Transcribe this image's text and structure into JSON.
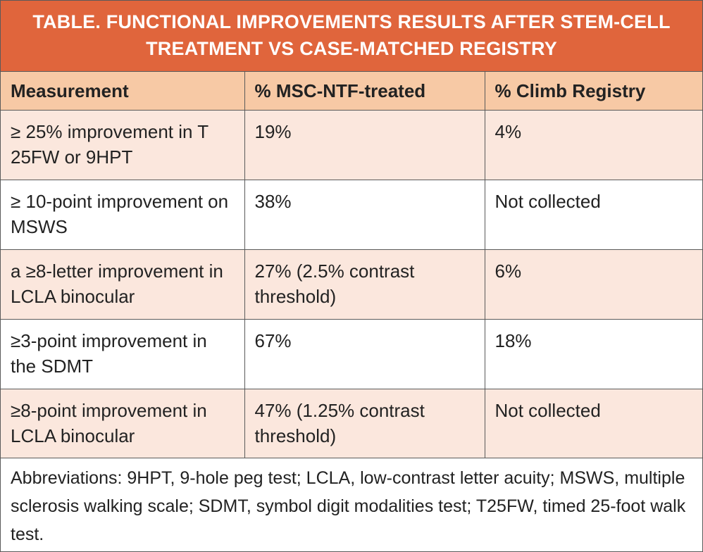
{
  "title": {
    "line1": "TABLE.  FUNCTIONAL IMPROVEMENTS RESULTS AFTER STEM-CELL",
    "line2": "TREATMENT VS CASE-MATCHED REGISTRY"
  },
  "columns": [
    "Measurement",
    "% MSC-NTF-treated",
    "% Climb Registry"
  ],
  "rows": [
    {
      "measurement": "≥ 25% improvement in T 25FW or 9HPT",
      "treated": "19%",
      "registry": "4%"
    },
    {
      "measurement": "≥ 10-point improvement on MSWS",
      "treated": "38%",
      "registry": "Not collected"
    },
    {
      "measurement": "a ≥8-letter improvement in LCLA binocular",
      "treated": "27% (2.5% contrast threshold)",
      "registry": "6%"
    },
    {
      "measurement": "≥3-point improvement in the SDMT",
      "treated": "67%",
      "registry": "18%"
    },
    {
      "measurement": "≥8-point improvement in LCLA binocular",
      "treated": "47% (1.25% contrast threshold)",
      "registry": "Not collected"
    }
  ],
  "footnote": "Abbreviations: 9HPT, 9-hole peg test; LCLA, low-contrast letter acuity; MSWS, multiple sclerosis walking scale; SDMT, symbol digit modalities test; T25FW, timed 25-foot walk test.",
  "colors": {
    "title_bg": "#e0653c",
    "header_bg": "#f7c9a5",
    "shaded_row_bg": "#fbe7dd"
  }
}
